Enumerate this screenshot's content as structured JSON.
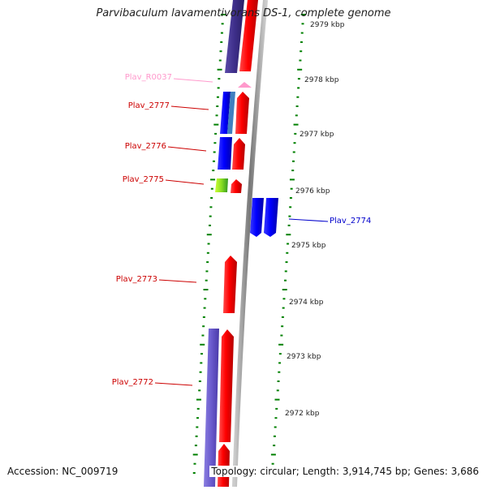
{
  "title": "Parvibaculum lavamentivorans DS-1, complete genome",
  "footer": {
    "accession": "Accession: NC_009719",
    "topology": "Topology: circular; Length: 3,914,745 bp; Genes: 3,686"
  },
  "colors": {
    "forward_cds": "#ff0000",
    "reverse_cds": "#0000ff",
    "rna": "#ff99cc",
    "tick": "#008000",
    "backbone": "#888888",
    "orf_track": "#6655cc"
  },
  "scale": {
    "unit": "kbp",
    "ticks": [
      "2979 kbp",
      "2978 kbp",
      "2977 kbp",
      "2976 kbp",
      "2975 kbp",
      "2974 kbp",
      "2973 kbp",
      "2972 kbp"
    ]
  },
  "gene_labels": [
    {
      "id": "Plav_R0037",
      "color": "#ff99cc"
    },
    {
      "id": "Plav_2777",
      "color": "#cc0000"
    },
    {
      "id": "Plav_2776",
      "color": "#cc0000"
    },
    {
      "id": "Plav_2775",
      "color": "#cc0000"
    },
    {
      "id": "Plav_2774",
      "color": "#0000cc"
    },
    {
      "id": "Plav_2773",
      "color": "#cc0000"
    },
    {
      "id": "Plav_2772",
      "color": "#cc0000"
    }
  ]
}
